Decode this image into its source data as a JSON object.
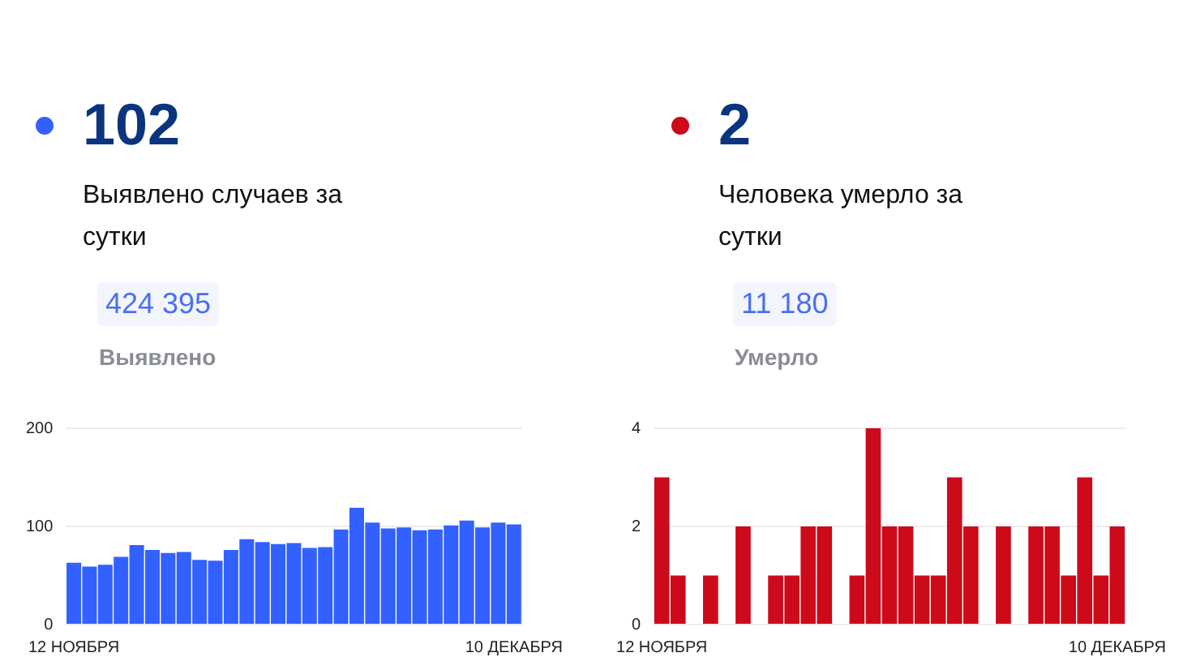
{
  "chart_data": [
    {
      "type": "bar",
      "title": "102",
      "subtitle": "Выявлено случаев за сутки",
      "annotations": [
        "424 395",
        "Выявлено"
      ],
      "categories": [
        "12 НОЯБРЯ",
        null,
        null,
        null,
        null,
        null,
        null,
        null,
        null,
        null,
        null,
        null,
        null,
        null,
        null,
        null,
        null,
        null,
        null,
        null,
        null,
        null,
        null,
        null,
        null,
        null,
        null,
        null,
        "10 ДЕКАБРЯ"
      ],
      "series": [
        {
          "color": "#3361ff",
          "values": [
            63,
            59,
            61,
            69,
            81,
            76,
            73,
            74,
            66,
            65,
            76,
            87,
            84,
            82,
            83,
            78,
            79,
            97,
            119,
            104,
            98,
            99,
            96,
            97,
            101,
            106,
            99,
            104,
            102
          ]
        }
      ],
      "ylim": [
        0,
        200
      ],
      "yticks": [
        0,
        100,
        200
      ],
      "grid": "y",
      "legend": false
    },
    {
      "type": "bar",
      "title": "2",
      "subtitle": "Человека умерло за сутки",
      "annotations": [
        "11 180",
        "Умерло"
      ],
      "categories": [
        "12 НОЯБРЯ",
        null,
        null,
        null,
        null,
        null,
        null,
        null,
        null,
        null,
        null,
        null,
        null,
        null,
        null,
        null,
        null,
        null,
        null,
        null,
        null,
        null,
        null,
        null,
        null,
        null,
        null,
        null,
        "10 ДЕКАБРЯ"
      ],
      "series": [
        {
          "color": "#cc0a1a",
          "values": [
            3,
            1,
            0,
            1,
            0,
            2,
            0,
            1,
            1,
            2,
            2,
            0,
            1,
            4,
            2,
            2,
            1,
            1,
            3,
            2,
            0,
            2,
            0,
            2,
            2,
            1,
            3,
            1,
            2
          ]
        }
      ],
      "ylim": [
        0,
        4
      ],
      "yticks": [
        0,
        2,
        4
      ],
      "grid": "y",
      "legend": false
    }
  ]
}
